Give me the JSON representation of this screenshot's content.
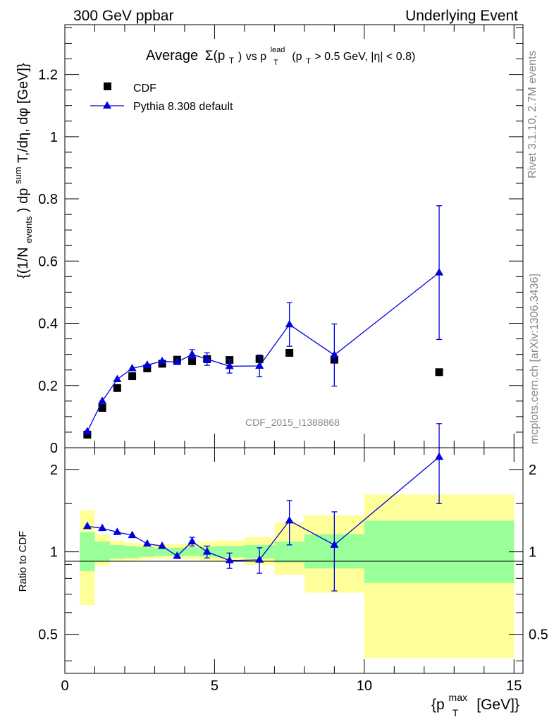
{
  "header": {
    "left": "300 GeV ppbar",
    "right": "Underlying Event"
  },
  "side": {
    "rivet": "Rivet 3.1.10,  2.7M events",
    "mcplots": "mcplots.cern.ch [arXiv:1306.3436]"
  },
  "chart_data": [
    {
      "type": "scatter",
      "title_parts": {
        "avg": "Average",
        "sigma": "Σ(p",
        "sigma_sub": "T",
        "sigma_close": ")",
        "vs": " vs p",
        "vs_sup": "lead",
        "vs_sub": "T",
        "cut1": " (p",
        "cut1_sub": "T",
        "cut2": " > 0.5 GeV, |η| < 0.8)"
      },
      "ylabel": "{(1/N_events) dp^sum T,/dη, dφ [GeV]}",
      "ylabel_parts": {
        "a": "{(1/N",
        "a_sub": "events",
        "b": ") dp",
        "b_sup": "sum",
        "c": "T,/dη, dφ [GeV]}"
      },
      "watermark": "CDF_2015_I1388868",
      "xlim": [
        0,
        15.3
      ],
      "ylim": [
        0,
        1.36
      ],
      "y_ticks": [
        0,
        0.2,
        0.4,
        0.6,
        0.8,
        1,
        1.2
      ],
      "y_tick_labels": [
        "0",
        "0.2",
        "0.4",
        "0.6",
        "0.8",
        "1",
        "1.2"
      ],
      "legend": {
        "position": "top-left",
        "entries": [
          "CDF",
          "Pythia 8.308 default"
        ]
      },
      "series": [
        {
          "name": "CDF",
          "marker": "square",
          "color": "#000000",
          "x": [
            0.75,
            1.25,
            1.75,
            2.25,
            2.75,
            3.25,
            3.75,
            4.25,
            4.75,
            5.5,
            6.5,
            7.5,
            9.0,
            12.5
          ],
          "y": [
            0.042,
            0.128,
            0.192,
            0.23,
            0.255,
            0.27,
            0.283,
            0.278,
            0.285,
            0.282,
            0.285,
            0.305,
            0.283,
            0.243
          ],
          "xerr": [
            0.25,
            0.25,
            0.25,
            0.25,
            0.25,
            0.25,
            0.25,
            0.25,
            0.25,
            0.5,
            0.5,
            0.5,
            1.0,
            2.5
          ]
        },
        {
          "name": "Pythia 8.308 default",
          "marker": "triangle",
          "color": "#0000dd",
          "x": [
            0.75,
            1.25,
            1.75,
            2.25,
            2.75,
            3.25,
            3.75,
            4.25,
            4.75,
            5.5,
            6.5,
            7.5,
            9.0,
            12.5
          ],
          "y": [
            0.052,
            0.15,
            0.22,
            0.255,
            0.266,
            0.278,
            0.275,
            0.3,
            0.285,
            0.262,
            0.263,
            0.396,
            0.298,
            0.563
          ],
          "yerr": [
            0.003,
            0.004,
            0.005,
            0.006,
            0.007,
            0.008,
            0.01,
            0.015,
            0.02,
            0.022,
            0.035,
            0.07,
            0.1,
            0.215
          ]
        }
      ]
    },
    {
      "type": "scatter",
      "ylabel": "Ratio to CDF",
      "xlabel_parts": {
        "a": "{p",
        "sup": "max",
        "sub": "T",
        "b": " [GeV]}"
      },
      "xlim": [
        0,
        15.3
      ],
      "ylim": [
        0.36,
        2.4
      ],
      "y_scale": "log",
      "x_ticks": [
        0,
        5,
        10,
        15
      ],
      "x_tick_labels": [
        "0",
        "5",
        "10",
        "15"
      ],
      "y_ticks": [
        0.5,
        1,
        2
      ],
      "y_tick_labels": [
        "0.5",
        "1",
        "2"
      ],
      "bands": {
        "x_edges": [
          0.5,
          1.0,
          1.5,
          2.0,
          2.5,
          3.0,
          3.5,
          4.0,
          4.5,
          5.0,
          6.0,
          7.0,
          8.0,
          10.0,
          15.0
        ],
        "green_low": [
          0.85,
          0.92,
          0.945,
          0.95,
          0.96,
          0.965,
          0.965,
          0.965,
          0.96,
          0.955,
          0.945,
          0.915,
          0.87,
          0.77
        ],
        "green_high": [
          1.18,
          1.09,
          1.06,
          1.05,
          1.04,
          1.035,
          1.035,
          1.04,
          1.045,
          1.05,
          1.06,
          1.09,
          1.16,
          1.3
        ],
        "yellow_low": [
          0.64,
          0.89,
          0.92,
          0.93,
          0.94,
          0.945,
          0.945,
          0.94,
          0.93,
          0.92,
          0.895,
          0.825,
          0.71,
          0.41
        ],
        "yellow_high": [
          1.42,
          1.16,
          1.1,
          1.08,
          1.07,
          1.065,
          1.065,
          1.07,
          1.09,
          1.1,
          1.13,
          1.28,
          1.36,
          1.62
        ],
        "green_color": "#99ff99",
        "yellow_color": "#ffff99"
      },
      "series": [
        {
          "name": "Pythia 8.308 default",
          "marker": "triangle",
          "color": "#0000dd",
          "x": [
            0.75,
            1.25,
            1.75,
            2.25,
            2.75,
            3.25,
            3.75,
            4.25,
            4.75,
            5.5,
            6.5,
            7.5,
            9.0,
            12.5
          ],
          "y": [
            1.24,
            1.22,
            1.18,
            1.15,
            1.07,
            1.05,
            0.965,
            1.09,
            1.0,
            0.93,
            0.935,
            1.3,
            1.06,
            2.22
          ],
          "yerr": [
            0.01,
            0.01,
            0.01,
            0.01,
            0.01,
            0.01,
            0.02,
            0.04,
            0.05,
            0.06,
            0.1,
            0.24,
            0.34,
            0.72
          ]
        }
      ]
    }
  ]
}
